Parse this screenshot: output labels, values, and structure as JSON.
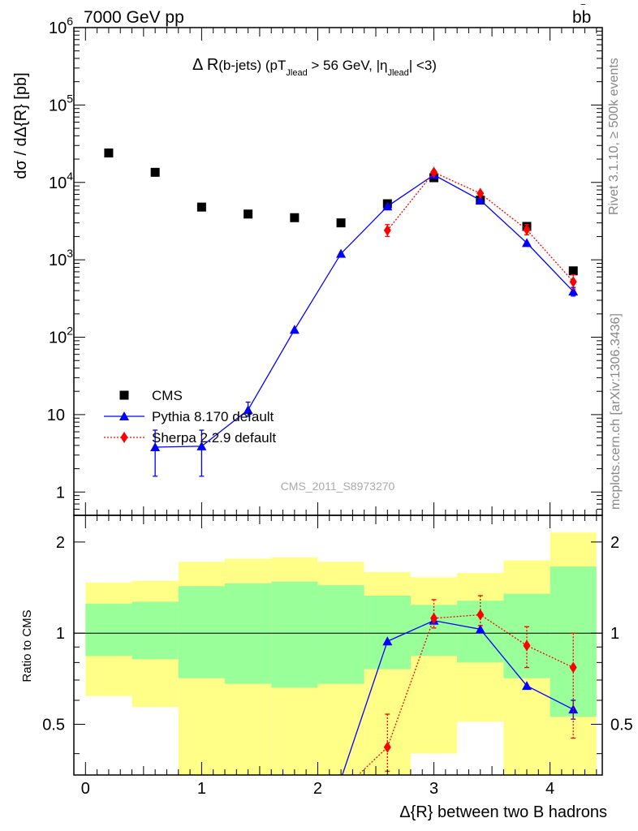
{
  "header": {
    "left": "7000 GeV pp",
    "right_main": "bb",
    "right_bar": "‾",
    "side_top": "Rivet 3.1.10, ≥ 500k events",
    "side_bottom": "mcplots.cern.ch [arXiv:1306.3436]",
    "analysis_id": "CMS_2011_S8973270"
  },
  "title_parts": {
    "a": "Δ R",
    "b": "(b-jets) (pT",
    "c": "Jlead",
    "d": " >  56 GeV, |η",
    "e": "Jlead",
    "f": "| <3)"
  },
  "chart_data": [
    {
      "panel": "main",
      "type": "scatter",
      "ylabel": "dσ / dΔ{R} [pb]",
      "log_y": true,
      "ylim": [
        0.5,
        1000000
      ],
      "xlim": [
        -0.1,
        4.45
      ],
      "yticks": [
        {
          "v": 1,
          "label": "1"
        },
        {
          "v": 10,
          "label": "10"
        },
        {
          "v": 100,
          "label": "10",
          "sup": "2"
        },
        {
          "v": 1000,
          "label": "10",
          "sup": "3"
        },
        {
          "v": 10000,
          "label": "10",
          "sup": "4"
        },
        {
          "v": 100000,
          "label": "10",
          "sup": "5"
        },
        {
          "v": 1000000,
          "label": "10",
          "sup": "6"
        }
      ],
      "legend_position": "lower-left",
      "series": [
        {
          "name": "CMS",
          "marker": "square",
          "color": "#000000",
          "x": [
            0.2,
            0.6,
            1.0,
            1.4,
            1.8,
            2.2,
            2.6,
            3.0,
            3.4,
            3.8,
            4.2
          ],
          "y": [
            24000,
            13500,
            4800,
            3900,
            3500,
            3000,
            5300,
            11500,
            5900,
            2700,
            720
          ]
        },
        {
          "name": "Pythia 8.170 default",
          "marker": "triangle",
          "color": "#0000ff",
          "line": "solid",
          "x": [
            0.6,
            1.0,
            1.4,
            1.8,
            2.2,
            2.6,
            3.0,
            3.4,
            3.8,
            4.2
          ],
          "y": [
            3.8,
            3.9,
            11.5,
            125,
            1200,
            4900,
            12500,
            5900,
            1650,
            390
          ],
          "err_lo": [
            1.6,
            1.6,
            9.5,
            null,
            null,
            null,
            null,
            null,
            null,
            340
          ],
          "err_hi": [
            6.3,
            6.3,
            14.5,
            null,
            null,
            null,
            null,
            null,
            null,
            440
          ]
        },
        {
          "name": "Sherpa 2.2.9 default",
          "marker": "diamond",
          "color": "#ff0000",
          "line": "dotted",
          "x": [
            2.6,
            3.0,
            3.4,
            3.8,
            4.2
          ],
          "y": [
            2400,
            13500,
            7200,
            2450,
            520
          ],
          "err_lo": [
            2000,
            null,
            null,
            2100,
            420
          ],
          "err_hi": [
            2850,
            null,
            null,
            2850,
            640
          ]
        }
      ]
    },
    {
      "panel": "ratio",
      "type": "line",
      "ylabel": "Ratio to CMS",
      "xlabel": "Δ{R} between two B hadrons",
      "log_y": true,
      "ylim": [
        0.34,
        2.45
      ],
      "xlim": [
        -0.1,
        4.45
      ],
      "xticks": [
        0,
        1,
        2,
        3,
        4
      ],
      "yticks": [
        0.5,
        1,
        2
      ],
      "bands": {
        "edges": [
          0,
          0.4,
          0.8,
          1.2,
          1.6,
          2.0,
          2.4,
          2.8,
          3.2,
          3.6,
          4.0,
          4.4
        ],
        "yellow_lo": [
          0.62,
          0.57,
          0.34,
          0.34,
          0.34,
          0.34,
          0.34,
          0.4,
          0.51,
          0.34,
          0.34
        ],
        "yellow_hi": [
          1.47,
          1.49,
          1.72,
          1.76,
          1.78,
          1.72,
          1.59,
          1.53,
          1.58,
          1.74,
          2.15
        ],
        "green_lo": [
          0.84,
          0.82,
          0.71,
          0.68,
          0.66,
          0.68,
          0.76,
          0.84,
          0.8,
          0.71,
          0.53
        ],
        "green_hi": [
          1.25,
          1.27,
          1.43,
          1.46,
          1.48,
          1.44,
          1.33,
          1.24,
          1.28,
          1.35,
          1.66
        ]
      },
      "series": [
        {
          "name": "Pythia 8.170 default",
          "color": "#0000ff",
          "x": [
            2.2,
            2.6,
            3.0,
            3.4,
            3.8,
            4.2
          ],
          "y": [
            0.33,
            0.94,
            1.1,
            1.03,
            0.67,
            0.56
          ],
          "err_lo": [
            null,
            null,
            null,
            null,
            null,
            0.52
          ],
          "err_hi": [
            null,
            null,
            null,
            null,
            null,
            0.6
          ]
        },
        {
          "name": "Sherpa 2.2.9 default",
          "color": "#ff0000",
          "x": [
            2.2,
            2.6,
            3.0,
            3.4,
            3.8,
            4.2
          ],
          "y": [
            0.3,
            0.42,
            1.12,
            1.15,
            0.91,
            0.77
          ],
          "err_lo": [
            null,
            0.35,
            1.04,
            1.06,
            0.77,
            0.45
          ],
          "err_hi": [
            null,
            0.54,
            1.29,
            1.33,
            1.05,
            1.0
          ]
        }
      ]
    }
  ]
}
